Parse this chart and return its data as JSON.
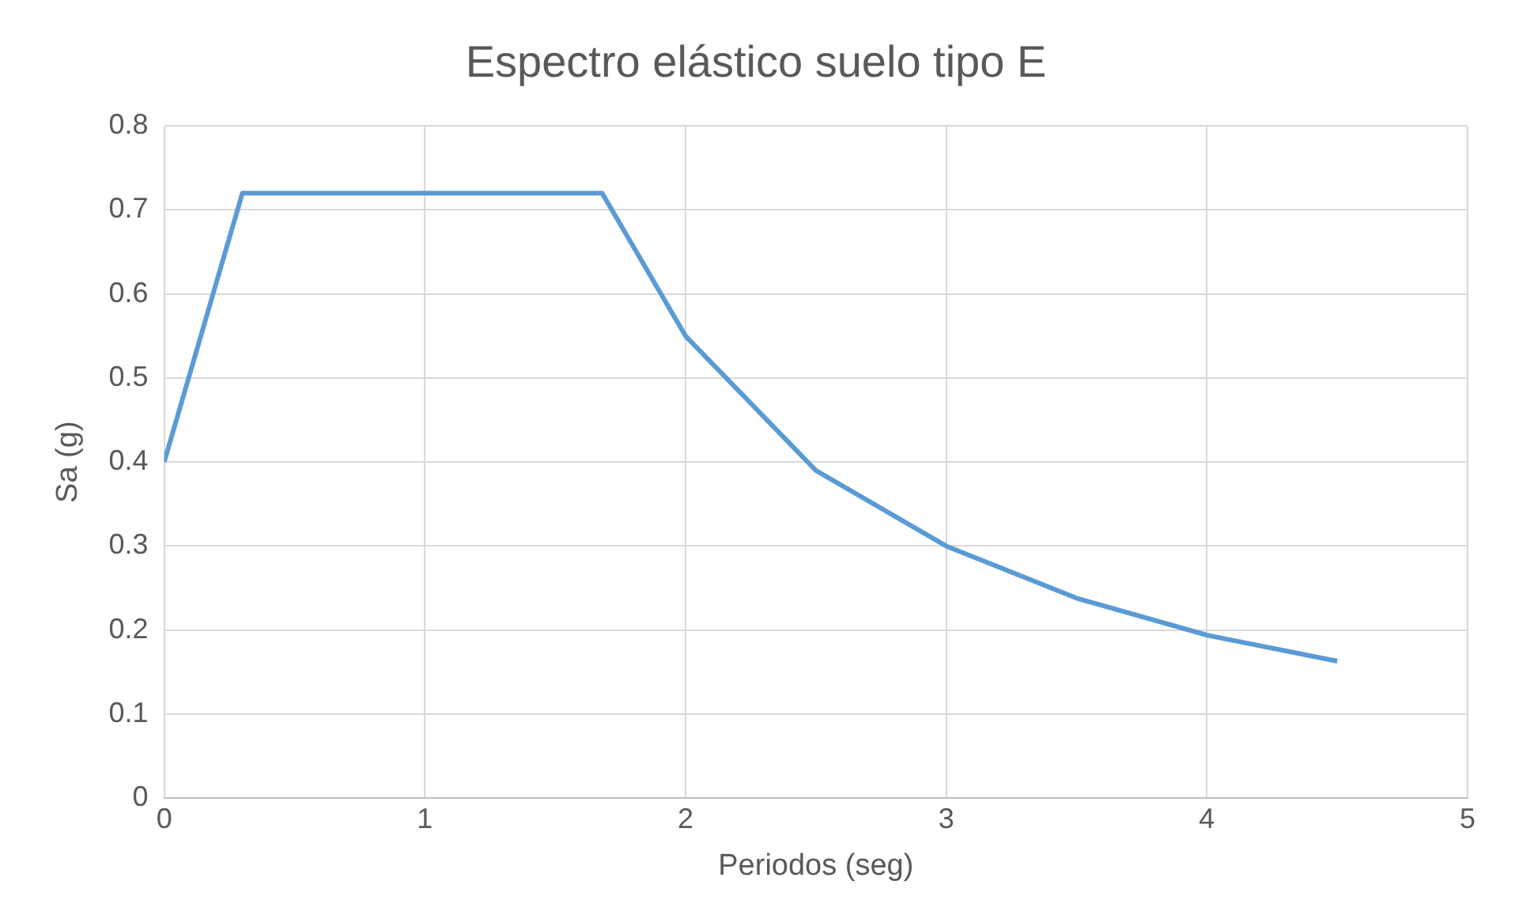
{
  "chart_data": {
    "type": "line",
    "title": "Espectro elástico suelo tipo E",
    "xlabel": "Periodos (seg)",
    "ylabel": "Sa (g)",
    "x": [
      0,
      0.3,
      1.68,
      2,
      2.5,
      3,
      3.5,
      4,
      4.5
    ],
    "series": [
      {
        "color": "#5b9bd5",
        "values": [
          0.4,
          0.72,
          0.72,
          0.55,
          0.39,
          0.3,
          0.238,
          0.194,
          0.163
        ]
      }
    ],
    "xlim": [
      0,
      5
    ],
    "xticks": [
      0,
      1,
      2,
      3,
      4,
      5
    ],
    "ylim": [
      0,
      0.8
    ],
    "yticks": [
      0,
      0.1,
      0.2,
      0.3,
      0.4,
      0.5,
      0.6,
      0.7,
      0.8
    ],
    "grid": true,
    "legend": false,
    "marker": "none",
    "line_style": "solid"
  }
}
